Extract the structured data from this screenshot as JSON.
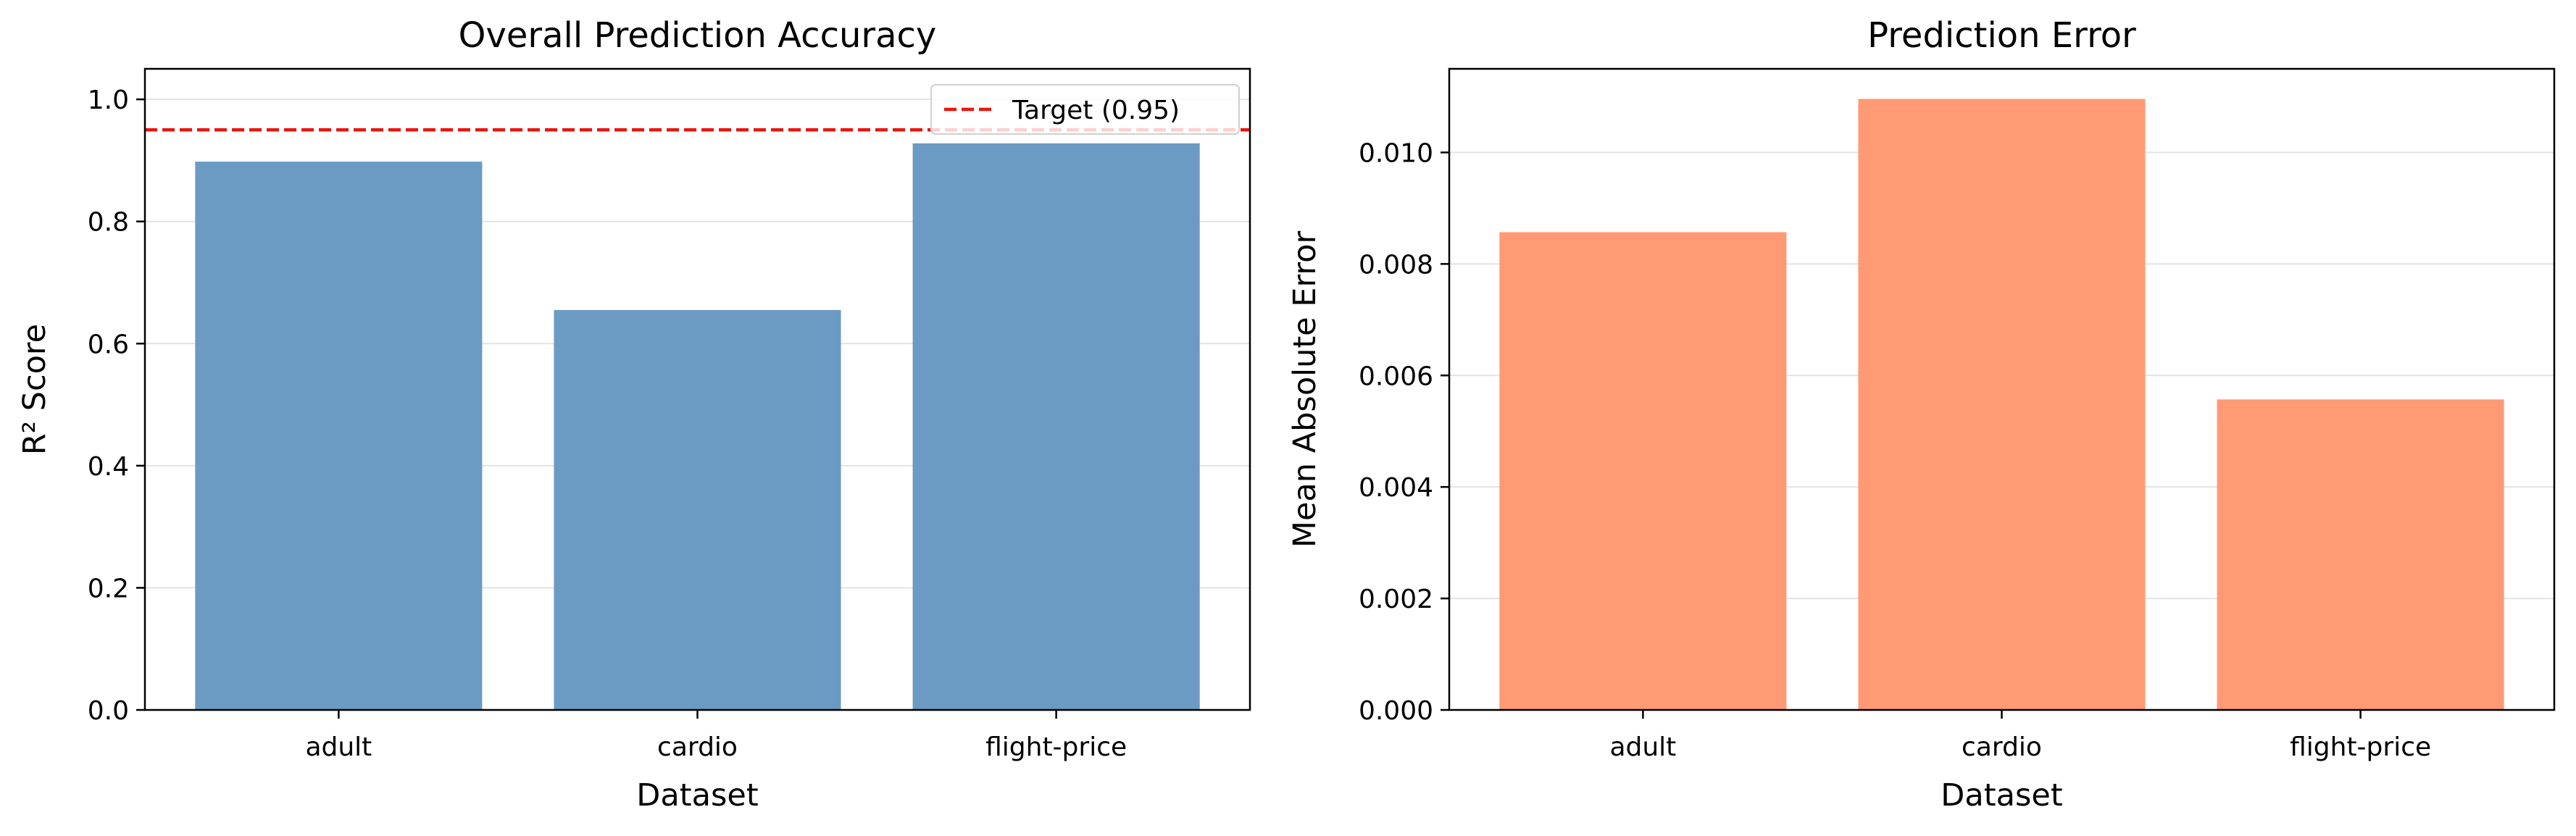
{
  "chart_data": [
    {
      "type": "bar",
      "title": "Overall Prediction Accuracy",
      "xlabel": "Dataset",
      "ylabel": "R² Score",
      "categories": [
        "adult",
        "cardio",
        "flight-price"
      ],
      "values": [
        0.898,
        0.655,
        0.928
      ],
      "ylim": [
        0,
        1.05
      ],
      "yticks": [
        0.0,
        0.2,
        0.4,
        0.6,
        0.8,
        1.0
      ],
      "ytick_labels": [
        "0.0",
        "0.2",
        "0.4",
        "0.6",
        "0.8",
        "1.0"
      ],
      "bar_color": "#6b9bc3",
      "grid": "y",
      "reference_line": {
        "y": 0.95,
        "label": "Target (0.95)",
        "color": "#e8150f",
        "style": "dashed"
      },
      "legend_position": "top-right"
    },
    {
      "type": "bar",
      "title": "Prediction Error",
      "xlabel": "Dataset",
      "ylabel": "Mean Absolute Error",
      "categories": [
        "adult",
        "cardio",
        "flight-price"
      ],
      "values": [
        0.00857,
        0.01096,
        0.00557
      ],
      "ylim": [
        0,
        0.0115
      ],
      "yticks": [
        0.0,
        0.002,
        0.004,
        0.006,
        0.008,
        0.01
      ],
      "ytick_labels": [
        "0.000",
        "0.002",
        "0.004",
        "0.006",
        "0.008",
        "0.010"
      ],
      "bar_color": "#ff9a75",
      "grid": "y"
    }
  ]
}
